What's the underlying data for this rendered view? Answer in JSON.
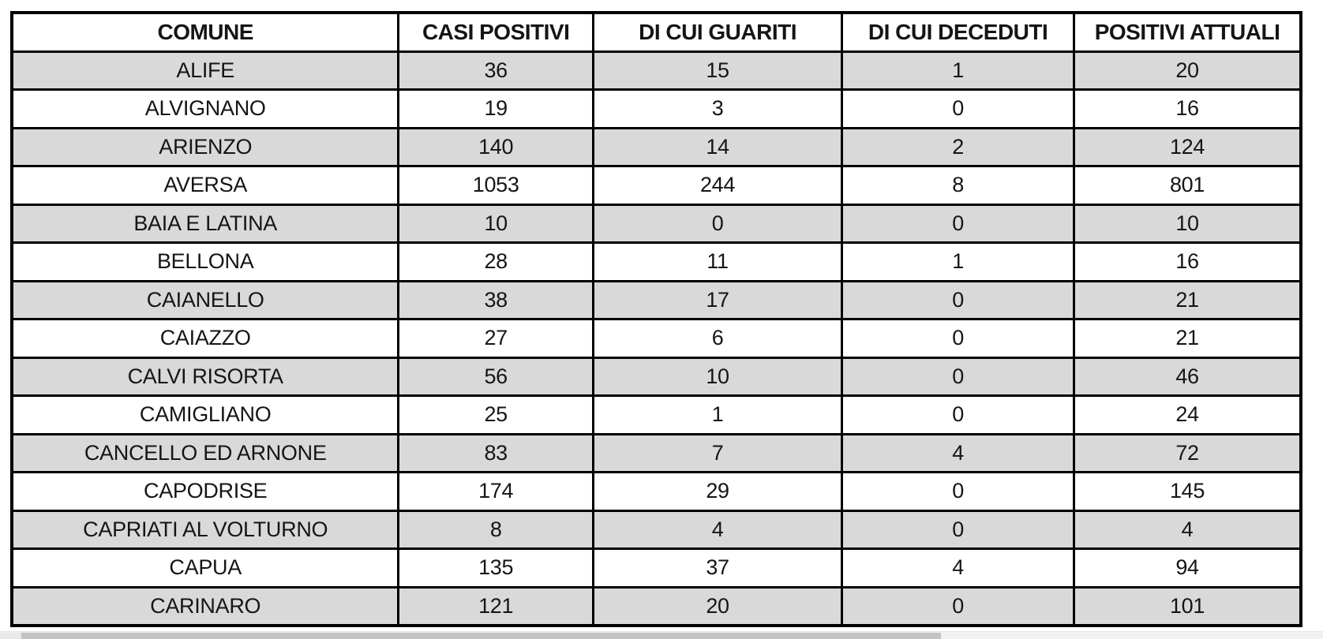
{
  "table": {
    "columns": [
      "COMUNE",
      "CASI POSITIVI",
      "DI CUI GUARITI",
      "DI CUI DECEDUTI",
      "POSITIVI ATTUALI"
    ],
    "rows": [
      {
        "comune": "ALIFE",
        "values": [
          "36",
          "15",
          "1",
          "20"
        ]
      },
      {
        "comune": "ALVIGNANO",
        "values": [
          "19",
          "3",
          "0",
          "16"
        ]
      },
      {
        "comune": "ARIENZO",
        "values": [
          "140",
          "14",
          "2",
          "124"
        ]
      },
      {
        "comune": "AVERSA",
        "values": [
          "1053",
          "244",
          "8",
          "801"
        ]
      },
      {
        "comune": "BAIA E LATINA",
        "values": [
          "10",
          "0",
          "0",
          "10"
        ]
      },
      {
        "comune": "BELLONA",
        "values": [
          "28",
          "11",
          "1",
          "16"
        ]
      },
      {
        "comune": "CAIANELLO",
        "values": [
          "38",
          "17",
          "0",
          "21"
        ]
      },
      {
        "comune": "CAIAZZO",
        "values": [
          "27",
          "6",
          "0",
          "21"
        ]
      },
      {
        "comune": "CALVI RISORTA",
        "values": [
          "56",
          "10",
          "0",
          "46"
        ]
      },
      {
        "comune": "CAMIGLIANO",
        "values": [
          "25",
          "1",
          "0",
          "24"
        ]
      },
      {
        "comune": "CANCELLO ED ARNONE",
        "values": [
          "83",
          "7",
          "4",
          "72"
        ]
      },
      {
        "comune": "CAPODRISE",
        "values": [
          "174",
          "29",
          "0",
          "145"
        ]
      },
      {
        "comune": "CAPRIATI AL VOLTURNO",
        "values": [
          "8",
          "4",
          "0",
          "4"
        ]
      },
      {
        "comune": "CAPUA",
        "values": [
          "135",
          "37",
          "4",
          "94"
        ]
      },
      {
        "comune": "CARINARO",
        "values": [
          "121",
          "20",
          "0",
          "101"
        ]
      }
    ]
  },
  "colors": {
    "table_border": "#000000",
    "row_shading": "#d9d9d9",
    "scrollbar_track": "#f1f1f1",
    "scrollbar_thumb": "#c3c3c3"
  }
}
